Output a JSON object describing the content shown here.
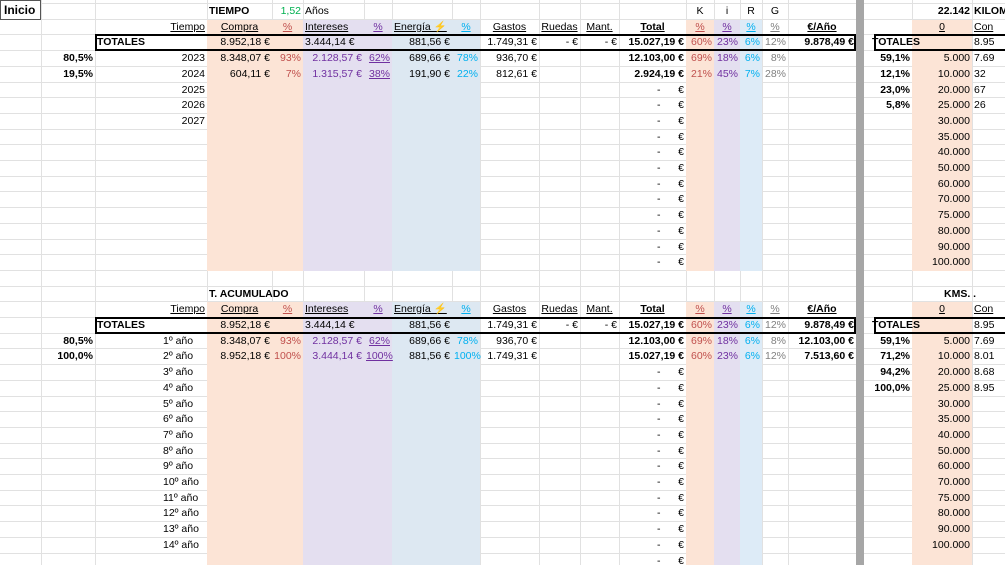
{
  "inicio": "Inicio",
  "colors": {
    "compra": "#fce4d6",
    "intereses": "#e4dff0",
    "energia": "#dde8f2",
    "k": "#fce4d6",
    "i": "#e4dff0",
    "r": "#ddebf7",
    "red": "#c0504d",
    "purple": "#7030a0",
    "blue": "#00b0f0",
    "green": "#00b050",
    "gray": "#808080"
  },
  "top": {
    "tiempo_label": "TIEMPO",
    "tiempo_val": "1,52",
    "tiempo_unit": "Años",
    "headers": {
      "tiempo": "Tiempo",
      "compra": "Compra",
      "pct": "%",
      "intereses": "Intereses",
      "energia": "Energía",
      "gastos": "Gastos",
      "ruedas": "Ruedas",
      "mant": "Mant.",
      "total": "Total",
      "eur_ano": "€/Año",
      "k": "K",
      "i": "i",
      "r": "R",
      "g": "G"
    },
    "totales": {
      "label": "TOTALES",
      "compra": "8.952,18 €",
      "intereses": "3.444,14 €",
      "energia": "881,56 €",
      "gastos": "1.749,31 €",
      "ruedas": "-   €",
      "mant": "-   €",
      "total": "15.027,19 €",
      "k": "60%",
      "i": "23%",
      "r": "6%",
      "g": "12%",
      "eur_ano": "9.878,49 €"
    },
    "rows": [
      {
        "pct": "80,5%",
        "year": "2023",
        "compra": "8.348,07 €",
        "cp": "93%",
        "int": "2.128,57 €",
        "ip": "62%",
        "en": "689,66 €",
        "ep": "78%",
        "gastos": "936,70 €",
        "total": "12.103,00 €",
        "k": "69%",
        "i": "18%",
        "r": "6%",
        "g": "8%"
      },
      {
        "pct": "19,5%",
        "year": "2024",
        "compra": "604,11 €",
        "cp": "7%",
        "int": "1.315,57 €",
        "ip": "38%",
        "en": "191,90 €",
        "ep": "22%",
        "gastos": "812,61 €",
        "total": "2.924,19 €",
        "k": "21%",
        "i": "45%",
        "r": "7%",
        "g": "28%"
      },
      {
        "pct": "",
        "year": "2025"
      },
      {
        "pct": "",
        "year": "2026"
      },
      {
        "pct": "",
        "year": "2027"
      }
    ],
    "dash": "-",
    "euro": "€",
    "right": {
      "top_num": "22.142",
      "top_label": "KILOM",
      "zero": "0",
      "con": "Con",
      "tot": "8.95",
      "rows": [
        {
          "p": "59,1%",
          "km": "5.000",
          "v": "7.69"
        },
        {
          "p": "12,1%",
          "km": "10.000",
          "v": "32"
        },
        {
          "p": "23,0%",
          "km": "20.000",
          "v": "67"
        },
        {
          "p": "5,8%",
          "km": "25.000",
          "v": "26"
        },
        {
          "p": "",
          "km": "30.000"
        },
        {
          "p": "",
          "km": "35.000"
        },
        {
          "p": "",
          "km": "40.000"
        },
        {
          "p": "",
          "km": "50.000"
        },
        {
          "p": "",
          "km": "60.000"
        },
        {
          "p": "",
          "km": "70.000"
        },
        {
          "p": "",
          "km": "75.000"
        },
        {
          "p": "",
          "km": "80.000"
        },
        {
          "p": "",
          "km": "90.000"
        },
        {
          "p": "",
          "km": "100.000"
        }
      ]
    }
  },
  "bottom": {
    "label": "T. ACUMULADO",
    "totales": {
      "label": "TOTALES",
      "compra": "8.952,18 €",
      "intereses": "3.444,14 €",
      "energia": "881,56 €",
      "gastos": "1.749,31 €",
      "ruedas": "-   €",
      "mant": "-   €",
      "total": "15.027,19 €",
      "k": "60%",
      "i": "23%",
      "r": "6%",
      "g": "12%",
      "eur_ano": "9.878,49 €"
    },
    "rows": [
      {
        "pct": "80,5%",
        "year": "1º año",
        "compra": "8.348,07 €",
        "cp": "93%",
        "int": "2.128,57 €",
        "ip": "62%",
        "en": "689,66 €",
        "ep": "78%",
        "gastos": "936,70 €",
        "total": "12.103,00 €",
        "k": "69%",
        "i": "18%",
        "r": "6%",
        "g": "8%",
        "ea": "12.103,00 €"
      },
      {
        "pct": "100,0%",
        "year": "2º año",
        "compra": "8.952,18 €",
        "cp": "100%",
        "int": "3.444,14 €",
        "ip": "100%",
        "en": "881,56 €",
        "ep": "100%",
        "gastos": "1.749,31 €",
        "total": "15.027,19 €",
        "k": "60%",
        "i": "23%",
        "r": "6%",
        "g": "12%",
        "ea": "7.513,60 €"
      },
      {
        "year": "3º año"
      },
      {
        "year": "4º año"
      },
      {
        "year": "5º año"
      },
      {
        "year": "6º año"
      },
      {
        "year": "7º año"
      },
      {
        "year": "8º año"
      },
      {
        "year": "9º año"
      },
      {
        "year": "10º año"
      },
      {
        "year": "11º año"
      },
      {
        "year": "12º año"
      },
      {
        "year": "13º año"
      },
      {
        "year": "14º año"
      }
    ],
    "right": {
      "top_label": "KMS. .",
      "zero": "0",
      "con": "Con",
      "tot": "8.95",
      "rows": [
        {
          "p": "59,1%",
          "km": "5.000",
          "v": "7.69"
        },
        {
          "p": "71,2%",
          "km": "10.000",
          "v": "8.01"
        },
        {
          "p": "94,2%",
          "km": "20.000",
          "v": "8.68"
        },
        {
          "p": "100,0%",
          "km": "25.000",
          "v": "8.95"
        },
        {
          "p": "",
          "km": "30.000"
        },
        {
          "p": "",
          "km": "35.000"
        },
        {
          "p": "",
          "km": "40.000"
        },
        {
          "p": "",
          "km": "50.000"
        },
        {
          "p": "",
          "km": "60.000"
        },
        {
          "p": "",
          "km": "70.000"
        },
        {
          "p": "",
          "km": "75.000"
        },
        {
          "p": "",
          "km": "80.000"
        },
        {
          "p": "",
          "km": "90.000"
        },
        {
          "p": "",
          "km": "100.000"
        }
      ]
    }
  }
}
